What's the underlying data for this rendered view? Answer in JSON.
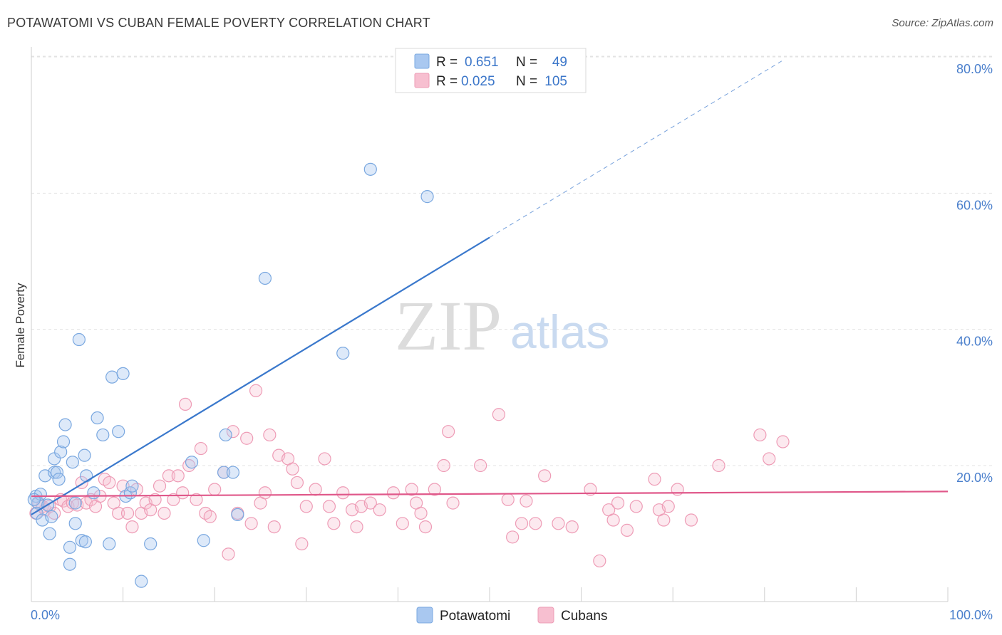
{
  "header": {
    "title": "POTAWATOMI VS CUBAN FEMALE POVERTY CORRELATION CHART",
    "source_prefix": "Source: ",
    "source_name": "ZipAtlas.com"
  },
  "watermark": {
    "zip": "ZIP",
    "atlas": "atlas"
  },
  "legend_top": {
    "rows": [
      {
        "r_label": "R =",
        "r_value": "0.651",
        "n_label": "N =",
        "n_value": "49",
        "color": "#a9c8f0"
      },
      {
        "r_label": "R =",
        "r_value": "0.025",
        "n_label": "N =",
        "n_value": "105",
        "color": "#f7bfd0"
      }
    ]
  },
  "legend_bottom": {
    "items": [
      {
        "label": "Potawatomi",
        "color": "#a9c8f0"
      },
      {
        "label": "Cubans",
        "color": "#f7bfd0"
      }
    ]
  },
  "chart_data": {
    "type": "scatter",
    "title": "POTAWATOMI VS CUBAN FEMALE POVERTY CORRELATION CHART",
    "xlabel": "",
    "ylabel": "Female Poverty",
    "xlim": [
      0,
      100
    ],
    "ylim": [
      0,
      84
    ],
    "x_tick_labels": {
      "left": "0.0%",
      "right": "100.0%"
    },
    "y_ticks": [
      20,
      40,
      60,
      80
    ],
    "y_tick_labels": [
      "20.0%",
      "40.0%",
      "60.0%",
      "80.0%"
    ],
    "grid": true,
    "legend_position": "top-center",
    "colors": {
      "potawatomi_stroke": "#7aa8e0",
      "potawatomi_fill": "#a9c8f0",
      "potawatomi_line": "#3a78cc",
      "cubans_stroke": "#ee9cb6",
      "cubans_fill": "#f7bfd0",
      "cubans_line": "#e0588a"
    },
    "series": [
      {
        "name": "Potawatomi",
        "trend": {
          "x0": 0,
          "y0": 12.8,
          "x1": 50,
          "y1": 53.5,
          "dash_to_x": 82,
          "dash_to_y": 79.5
        },
        "points": [
          [
            0.5,
            15.5
          ],
          [
            0.7,
            14.5
          ],
          [
            0.6,
            13.0
          ],
          [
            1.0,
            15.8
          ],
          [
            1.2,
            12.0
          ],
          [
            1.5,
            18.5
          ],
          [
            1.8,
            14.2
          ],
          [
            2.0,
            10.0
          ],
          [
            2.2,
            12.5
          ],
          [
            2.5,
            19.0
          ],
          [
            2.5,
            21.0
          ],
          [
            2.8,
            19.0
          ],
          [
            3.0,
            18.0
          ],
          [
            3.2,
            22.0
          ],
          [
            3.5,
            23.5
          ],
          [
            3.7,
            26.0
          ],
          [
            4.2,
            8.0
          ],
          [
            4.2,
            5.5
          ],
          [
            4.5,
            20.5
          ],
          [
            4.8,
            14.5
          ],
          [
            4.8,
            11.5
          ],
          [
            5.2,
            38.5
          ],
          [
            5.5,
            9.0
          ],
          [
            5.8,
            21.5
          ],
          [
            5.9,
            8.8
          ],
          [
            6.0,
            18.5
          ],
          [
            6.8,
            16.0
          ],
          [
            7.2,
            27.0
          ],
          [
            7.8,
            24.5
          ],
          [
            8.5,
            8.5
          ],
          [
            8.8,
            33.0
          ],
          [
            9.5,
            25.0
          ],
          [
            10.0,
            33.5
          ],
          [
            10.3,
            15.5
          ],
          [
            10.8,
            16.0
          ],
          [
            11.0,
            17.0
          ],
          [
            12.0,
            3.0
          ],
          [
            13.0,
            8.5
          ],
          [
            17.5,
            20.5
          ],
          [
            18.8,
            9.0
          ],
          [
            21.0,
            19.0
          ],
          [
            21.2,
            24.5
          ],
          [
            22.5,
            12.8
          ],
          [
            25.5,
            47.5
          ],
          [
            34.0,
            36.5
          ],
          [
            37.0,
            63.5
          ],
          [
            43.2,
            59.5
          ],
          [
            22.0,
            19.0
          ],
          [
            0.3,
            15.0
          ]
        ]
      },
      {
        "name": "Cubans",
        "trend": {
          "x0": 0,
          "y0": 15.5,
          "x1": 100,
          "y1": 16.2
        },
        "points": [
          [
            0.5,
            13.0
          ],
          [
            0.8,
            14.5
          ],
          [
            1.2,
            14.0
          ],
          [
            1.5,
            13.5
          ],
          [
            2.0,
            14.0
          ],
          [
            2.5,
            13.0
          ],
          [
            3.2,
            15.0
          ],
          [
            3.5,
            14.8
          ],
          [
            4.0,
            14.0
          ],
          [
            4.5,
            14.5
          ],
          [
            5.0,
            14.2
          ],
          [
            5.5,
            17.5
          ],
          [
            6.0,
            14.5
          ],
          [
            6.5,
            15.0
          ],
          [
            7.0,
            14.0
          ],
          [
            7.5,
            15.5
          ],
          [
            8.0,
            18.0
          ],
          [
            8.5,
            17.5
          ],
          [
            9.0,
            14.5
          ],
          [
            9.5,
            13.0
          ],
          [
            10.0,
            17.0
          ],
          [
            10.5,
            13.0
          ],
          [
            11.0,
            11.0
          ],
          [
            11.5,
            16.5
          ],
          [
            12.0,
            13.0
          ],
          [
            12.5,
            14.5
          ],
          [
            13.0,
            13.5
          ],
          [
            13.5,
            15.0
          ],
          [
            14.0,
            17.0
          ],
          [
            14.5,
            13.0
          ],
          [
            15.0,
            18.5
          ],
          [
            15.5,
            15.0
          ],
          [
            16.0,
            18.5
          ],
          [
            16.5,
            16.0
          ],
          [
            16.8,
            29.0
          ],
          [
            17.2,
            20.0
          ],
          [
            18.0,
            15.0
          ],
          [
            18.5,
            22.5
          ],
          [
            19.0,
            13.0
          ],
          [
            19.5,
            12.5
          ],
          [
            20.0,
            16.5
          ],
          [
            21.0,
            19.0
          ],
          [
            21.5,
            7.0
          ],
          [
            22.0,
            25.0
          ],
          [
            22.5,
            13.0
          ],
          [
            23.5,
            24.0
          ],
          [
            24.0,
            11.5
          ],
          [
            24.5,
            31.0
          ],
          [
            25.0,
            14.5
          ],
          [
            25.5,
            16.0
          ],
          [
            26.0,
            24.5
          ],
          [
            26.5,
            11.0
          ],
          [
            27.0,
            21.5
          ],
          [
            28.0,
            21.0
          ],
          [
            28.5,
            19.5
          ],
          [
            29.0,
            17.5
          ],
          [
            29.5,
            8.5
          ],
          [
            30.0,
            14.0
          ],
          [
            31.0,
            16.5
          ],
          [
            32.0,
            21.0
          ],
          [
            32.5,
            14.0
          ],
          [
            33.0,
            11.5
          ],
          [
            34.0,
            16.0
          ],
          [
            35.0,
            13.5
          ],
          [
            35.5,
            11.0
          ],
          [
            36.0,
            14.0
          ],
          [
            37.0,
            14.5
          ],
          [
            38.0,
            13.5
          ],
          [
            39.5,
            16.0
          ],
          [
            40.5,
            11.5
          ],
          [
            41.5,
            16.5
          ],
          [
            42.0,
            14.5
          ],
          [
            42.5,
            13.0
          ],
          [
            43.0,
            11.0
          ],
          [
            44.0,
            16.5
          ],
          [
            45.0,
            20.0
          ],
          [
            45.5,
            25.0
          ],
          [
            46.0,
            14.5
          ],
          [
            49.0,
            20.0
          ],
          [
            51.0,
            27.5
          ],
          [
            52.0,
            15.0
          ],
          [
            52.5,
            9.5
          ],
          [
            53.5,
            11.5
          ],
          [
            54.0,
            14.8
          ],
          [
            55.0,
            11.5
          ],
          [
            56.0,
            18.5
          ],
          [
            57.5,
            11.5
          ],
          [
            59.0,
            11.0
          ],
          [
            61.0,
            16.5
          ],
          [
            62.0,
            6.0
          ],
          [
            63.0,
            13.5
          ],
          [
            63.5,
            12.0
          ],
          [
            64.0,
            14.5
          ],
          [
            65.0,
            10.5
          ],
          [
            66.0,
            14.0
          ],
          [
            68.0,
            18.0
          ],
          [
            68.5,
            13.5
          ],
          [
            69.0,
            12.0
          ],
          [
            69.5,
            14.0
          ],
          [
            70.5,
            16.5
          ],
          [
            72.0,
            12.0
          ],
          [
            75.0,
            20.0
          ],
          [
            79.5,
            24.5
          ],
          [
            80.5,
            21.0
          ],
          [
            82.0,
            23.5
          ]
        ]
      }
    ]
  }
}
